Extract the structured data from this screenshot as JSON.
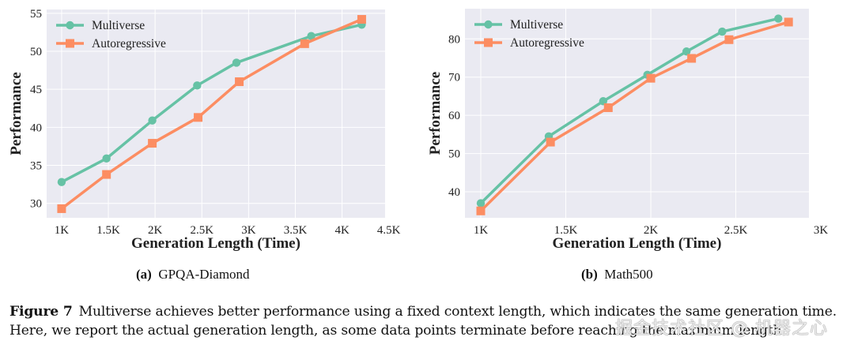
{
  "chart_data": [
    {
      "id": "a",
      "type": "line",
      "title": "",
      "xlabel": "Generation Length (Time)",
      "ylabel": "Performance",
      "xlim": [
        0.84,
        4.46
      ],
      "ylim": [
        28.1,
        55.5
      ],
      "xticks": [
        1,
        1.5,
        2,
        2.5,
        3,
        3.5,
        4,
        4.5
      ],
      "xtick_labels": [
        "1K",
        "1.5K",
        "2K",
        "2.5K",
        "3K",
        "3.5K",
        "4K",
        "4.5K"
      ],
      "yticks": [
        30,
        35,
        40,
        45,
        50,
        55
      ],
      "ytick_labels": [
        "30",
        "35",
        "40",
        "45",
        "50",
        "55"
      ],
      "grid": true,
      "legend": "top-left",
      "series": [
        {
          "name": "Multiverse",
          "color": "#66c2a5",
          "marker": "circle",
          "x": [
            1.0,
            1.48,
            1.97,
            2.45,
            2.87,
            3.67,
            4.21
          ],
          "y": [
            32.8,
            35.9,
            40.9,
            45.5,
            48.5,
            52.0,
            53.5
          ]
        },
        {
          "name": "Autoregressive",
          "color": "#fc8d62",
          "marker": "square",
          "x": [
            1.0,
            1.48,
            1.97,
            2.46,
            2.9,
            3.6,
            4.21
          ],
          "y": [
            29.3,
            33.8,
            37.9,
            41.3,
            46.0,
            51.0,
            54.2
          ]
        }
      ]
    },
    {
      "id": "b",
      "type": "line",
      "title": "",
      "xlabel": "Generation Length (Time)",
      "ylabel": "Performance",
      "xlim": [
        0.907,
        2.93
      ],
      "ylim": [
        33.2,
        87.9
      ],
      "xticks": [
        1,
        1.5,
        2,
        2.5,
        3
      ],
      "xtick_labels": [
        "1K",
        "1.5K",
        "2K",
        "2.5K",
        "3K"
      ],
      "yticks": [
        40,
        50,
        60,
        70,
        80
      ],
      "ytick_labels": [
        "40",
        "50",
        "60",
        "70",
        "80"
      ],
      "grid": true,
      "legend": "top-left",
      "series": [
        {
          "name": "Multiverse",
          "color": "#66c2a5",
          "marker": "circle",
          "x": [
            1.0,
            1.4,
            1.72,
            1.98,
            2.21,
            2.42,
            2.75
          ],
          "y": [
            37.0,
            54.5,
            63.7,
            70.6,
            76.7,
            81.9,
            85.3
          ]
        },
        {
          "name": "Autoregressive",
          "color": "#fc8d62",
          "marker": "square",
          "x": [
            1.0,
            1.41,
            1.75,
            2.0,
            2.24,
            2.46,
            2.81
          ],
          "y": [
            35.0,
            53.0,
            62.0,
            69.7,
            74.9,
            79.8,
            84.4
          ]
        }
      ]
    }
  ],
  "subcaptions": {
    "a": {
      "label": "(a)",
      "text": "GPQA-Diamond"
    },
    "b": {
      "label": "(b)",
      "text": "Math500"
    }
  },
  "caption": {
    "label": "Figure 7",
    "text": "Multiverse achieves better performance using a fixed context length, which indicates the same generation time. Here, we report the actual generation length, as some data points terminate before reaching the maximum length."
  },
  "watermark": "掘金技术社区 @ 机器之心",
  "colors": {
    "plot_bg": "#eaeaf2",
    "grid": "#ffffff",
    "text": "#222222"
  }
}
